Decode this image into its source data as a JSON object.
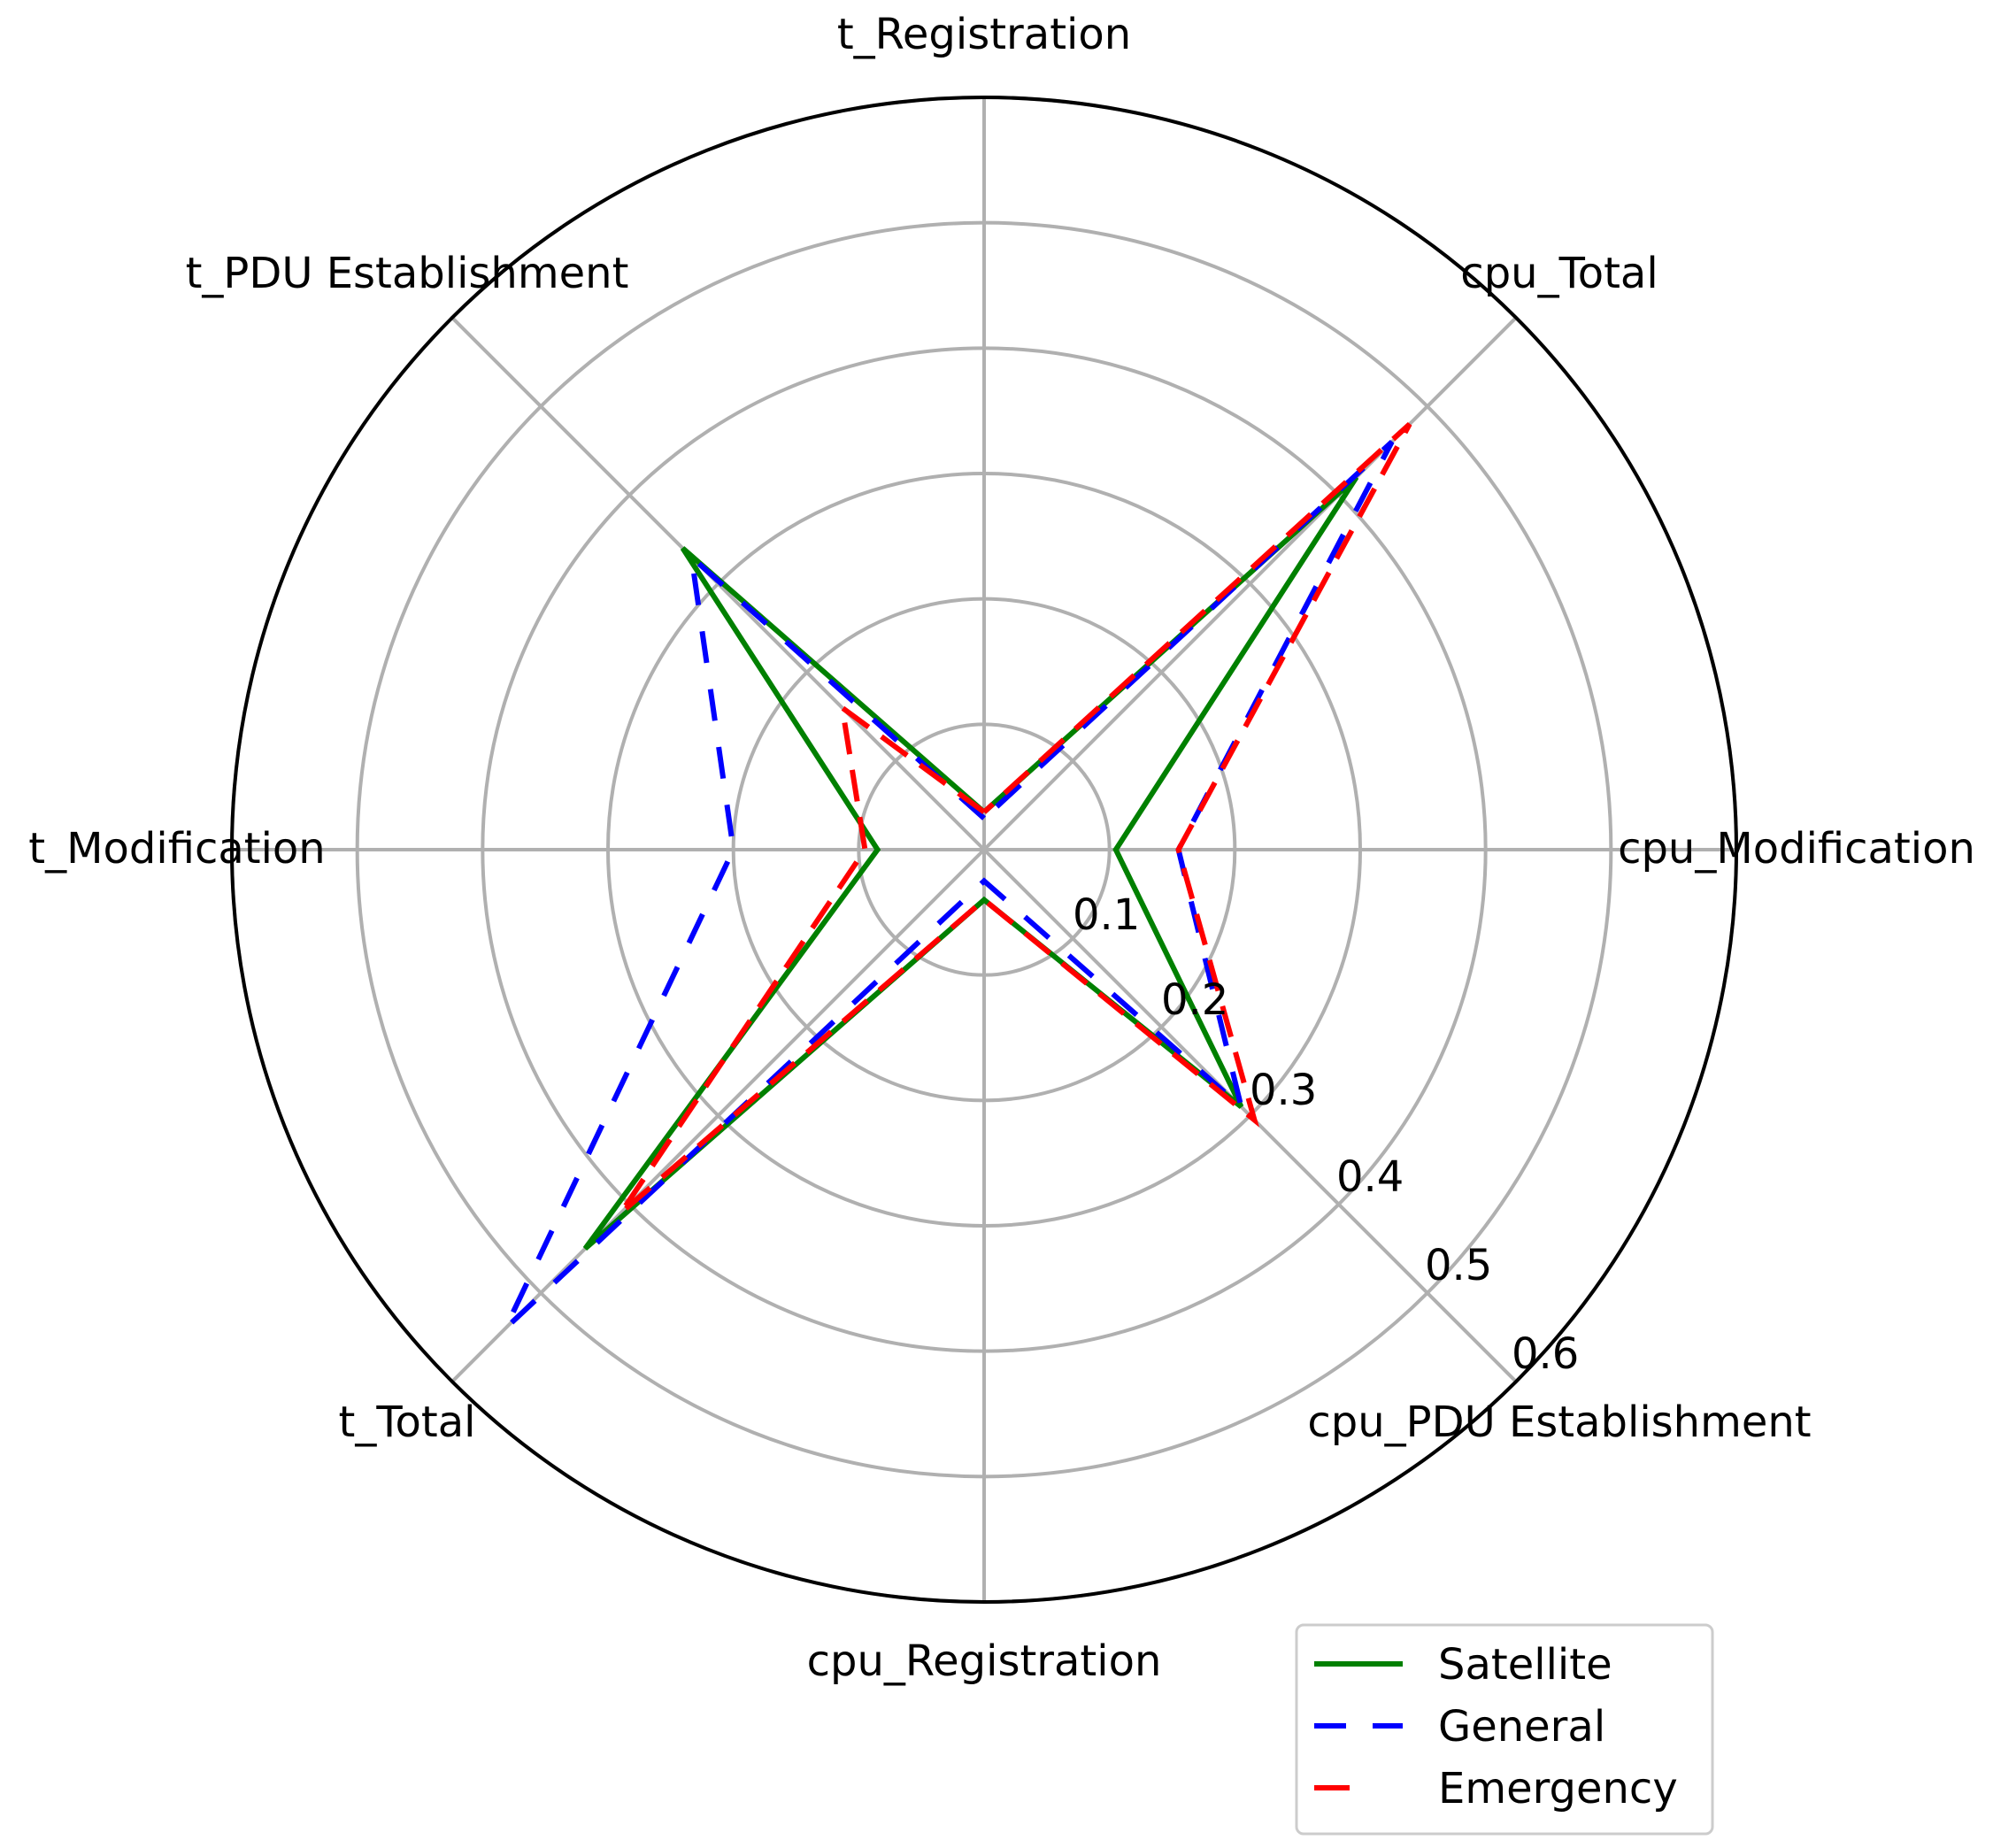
{
  "chart_data": {
    "type": "radar",
    "axes": [
      "t_Registration",
      "t_PDU Establishment",
      "t_Modification",
      "t_Total",
      "cpu_Registration",
      "cpu_PDU Establishment",
      "cpu_Modification",
      "cpu_Total"
    ],
    "radial_ticks": [
      "0.1",
      "0.2",
      "0.3",
      "0.4",
      "0.5",
      "0.6"
    ],
    "radial_tick_values": [
      0.1,
      0.2,
      0.3,
      0.4,
      0.5,
      0.6
    ],
    "rlim": [
      0,
      0.6
    ],
    "grid": true,
    "legend_position": "lower-right",
    "series": [
      {
        "name": "Satellite",
        "color": "#008000",
        "dash": "solid",
        "values": [
          0.03,
          0.34,
          0.085,
          0.45,
          0.04,
          0.29,
          0.105,
          0.42
        ]
      },
      {
        "name": "General",
        "color": "#0000ff",
        "dash": "dashed",
        "values": [
          0.025,
          0.33,
          0.2,
          0.54,
          0.025,
          0.29,
          0.155,
          0.46
        ]
      },
      {
        "name": "Emergency",
        "color": "#ff0000",
        "dash": "dashed",
        "values": [
          0.03,
          0.16,
          0.095,
          0.41,
          0.04,
          0.305,
          0.155,
          0.48
        ]
      }
    ]
  }
}
